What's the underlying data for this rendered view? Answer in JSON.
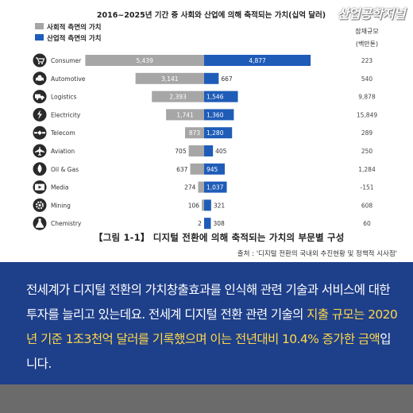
{
  "brand": "산업공학저널",
  "chart_data": {
    "type": "bar",
    "title": "2016~2025년 기간 중 사회와 산업에 의해 축적되는 가치(십억 달러)",
    "legend": [
      "사회적 측면의 가치",
      "산업적 측면의 가치"
    ],
    "legend_position": "top-left",
    "right_header": [
      "잠재규모",
      "(백만톤)"
    ],
    "categories": [
      "Consumer",
      "Automotive",
      "Logistics",
      "Electricity",
      "Telecom",
      "Aviation",
      "Oil & Gas",
      "Media",
      "Mining",
      "Chemistry"
    ],
    "icons": [
      "cart-icon",
      "car-icon",
      "truck-icon",
      "lightning-icon",
      "satellite-icon",
      "airplane-icon",
      "oil-drop-icon",
      "media-icon",
      "mining-icon",
      "flask-icon"
    ],
    "series": [
      {
        "name": "사회적 측면의 가치",
        "color": "#a6a6a6",
        "values": [
          5439,
          3141,
          2393,
          1741,
          873,
          705,
          637,
          274,
          106,
          2
        ]
      },
      {
        "name": "산업적 측면의 가치",
        "color": "#1f5cb8",
        "values": [
          4877,
          667,
          1546,
          1360,
          1280,
          405,
          945,
          1037,
          321,
          308
        ]
      }
    ],
    "right_values": [
      "223",
      "540",
      "9,878",
      "15,849",
      "289",
      "250",
      "1,284",
      "-151",
      "608",
      "60"
    ],
    "caption": "【그림 1-1】 디지털 전환에 의해 축적되는 가치의 부문별 구성",
    "source": "출처 : '디지털 전환의 국내외 추진현황 및 정책적 시사점'"
  },
  "text": {
    "part1": "전세계가 디지털 전환의 가치창출효과를 인식해 관련 기술과 서비스에 대한 투자를 늘리고 있는데요. 전세계 디지털 전환 관련 기술의 ",
    "hl1": "지출 규모는 2020년 기준 1조3천억 달러를 기록했으며 이는 전년대비 10.4% 증가한 금액",
    "part2": "입니다."
  },
  "colors": {
    "panel": "#1e3f8a",
    "highlight": "#ffd84a",
    "footer": "#6b6b6b"
  }
}
